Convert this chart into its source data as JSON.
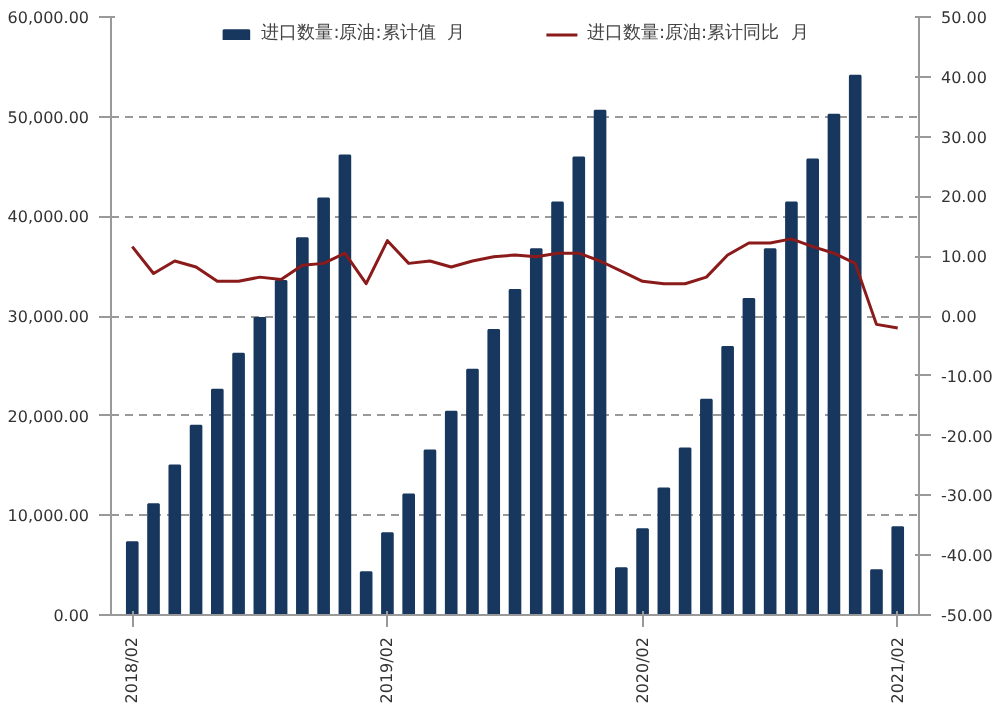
{
  "chart_data": {
    "type": "bar",
    "categories": [
      "2018/02",
      null,
      null,
      null,
      null,
      null,
      null,
      null,
      null,
      null,
      null,
      null,
      "2019/02",
      null,
      null,
      null,
      null,
      null,
      null,
      null,
      null,
      null,
      null,
      null,
      "2020/02",
      null,
      null,
      null,
      null,
      null,
      null,
      null,
      null,
      null,
      null,
      null,
      "2021/02"
    ],
    "series": [
      {
        "name": "进口数量:原油:累计值  月",
        "color": "#17375e",
        "values": [
          7300,
          11100,
          15000,
          19000,
          22600,
          26200,
          29800,
          33500,
          37800,
          41800,
          46100,
          4300,
          8200,
          12100,
          16500,
          20400,
          24600,
          28600,
          32600,
          36700,
          41400,
          45900,
          50600,
          4700,
          8600,
          12700,
          16700,
          21600,
          26900,
          31700,
          36700,
          41400,
          45700,
          50200,
          54100,
          4500,
          8800
        ]
      },
      {
        "name": "进口数量:原油:累计同比  月",
        "type": "line",
        "axis": "y2",
        "color": "#8b1a1a",
        "values": [
          11.6,
          7.1,
          9.2,
          8.2,
          5.8,
          5.8,
          6.5,
          6.1,
          8.5,
          8.8,
          10.5,
          5.4,
          12.6,
          8.8,
          9.2,
          8.2,
          9.2,
          9.9,
          10.2,
          9.9,
          10.5,
          10.5,
          9.2,
          7.5,
          5.8,
          5.4,
          5.4,
          6.5,
          10.2,
          12.2,
          12.2,
          12.9,
          11.6,
          10.5,
          8.8,
          -1.4,
          -2
        ]
      }
    ],
    "ylim": [
      0,
      60000
    ],
    "yticks": [
      {
        "value": 0,
        "label": "0.00"
      },
      {
        "value": 10000,
        "label": "10,000.00"
      },
      {
        "value": 20000,
        "label": "20,000.00"
      },
      {
        "value": 30000,
        "label": "30,000.00"
      },
      {
        "value": 40000,
        "label": "40,000.00"
      },
      {
        "value": 50000,
        "label": "50,000.00"
      },
      {
        "value": 60000,
        "label": "60,000.00"
      }
    ],
    "y2lim": [
      -50,
      50
    ],
    "y2ticks": [
      {
        "value": -50,
        "label": "-50.00"
      },
      {
        "value": -40,
        "label": "-40.00"
      },
      {
        "value": -30,
        "label": "-30.00"
      },
      {
        "value": -20,
        "label": "-20.00"
      },
      {
        "value": -10,
        "label": "-10.00"
      },
      {
        "value": 0,
        "label": "0.00"
      },
      {
        "value": 10,
        "label": "10.00"
      },
      {
        "value": 20,
        "label": "20.00"
      },
      {
        "value": 30,
        "label": "30.00"
      },
      {
        "value": 40,
        "label": "40.00"
      },
      {
        "value": 50,
        "label": "50.00"
      }
    ],
    "grid": "y",
    "legend": "top"
  }
}
